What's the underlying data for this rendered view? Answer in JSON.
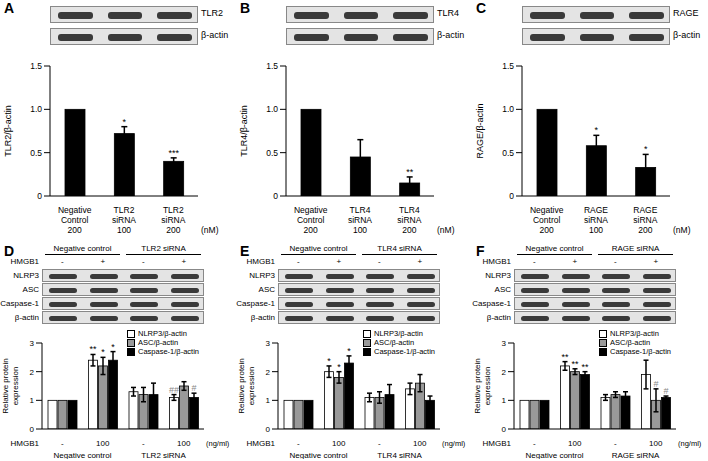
{
  "chart_data": [
    {
      "panel": "A",
      "type": "bar",
      "blots": [
        "TLR2",
        "β-actin"
      ],
      "categories": [
        "Negative Control",
        "TLR2 siRNA",
        "TLR2 siRNA"
      ],
      "doses": [
        200,
        100,
        200
      ],
      "x_unit": "(nM)",
      "y_label": "TLR2/β-actin",
      "values": [
        1,
        0.72,
        0.4
      ],
      "errors": [
        0,
        0.08,
        0.04
      ],
      "annotations": [
        null,
        "*",
        "***"
      ],
      "color": "#000000",
      "ylim": [
        0,
        1.5
      ],
      "yticks": [
        0,
        0.5,
        {
          "value": 1,
          "label": "1.0"
        },
        1.5
      ]
    },
    {
      "panel": "B",
      "type": "bar",
      "blots": [
        "TLR4",
        "β-actin"
      ],
      "categories": [
        "Negative Control",
        "TLR4 siRNA",
        "TLR4 siRNA"
      ],
      "doses": [
        200,
        100,
        200
      ],
      "x_unit": "(nM)",
      "y_label": "TLR4/β-actin",
      "values": [
        1,
        0.45,
        0.15
      ],
      "errors": [
        0,
        0.2,
        0.07
      ],
      "annotations": [
        null,
        null,
        "**"
      ],
      "color": "#000000",
      "ylim": [
        0,
        1.5
      ],
      "yticks": [
        0,
        0.5,
        {
          "value": 1,
          "label": "1.0"
        },
        1.5
      ]
    },
    {
      "panel": "C",
      "type": "bar",
      "blots": [
        "RAGE",
        "β-actin"
      ],
      "categories": [
        "Negative Control",
        "RAGE siRNA",
        "RAGE siRNA"
      ],
      "doses": [
        200,
        100,
        200
      ],
      "x_unit": "(nM)",
      "y_label": "RAGE/β-actin",
      "values": [
        1,
        0.58,
        0.33
      ],
      "errors": [
        0,
        0.12,
        0.15
      ],
      "annotations": [
        null,
        "*",
        "*"
      ],
      "color": "#000000",
      "ylim": [
        0,
        1.5
      ],
      "yticks": [
        0,
        0.5,
        {
          "value": 1,
          "label": "1.0"
        },
        1.5
      ]
    },
    {
      "panel": "D",
      "type": "bar",
      "blot_groups": [
        "Negative control",
        "TLR2 siRNA"
      ],
      "treatment": "HMGB1",
      "conditions": [
        "-",
        "+",
        "-",
        "+"
      ],
      "blots": [
        "NLRP3",
        "ASC",
        "Caspase-1",
        "β-actin"
      ],
      "categories": [
        "-",
        "100",
        "-",
        "100"
      ],
      "groups": [
        "Negative control",
        "TLR2 siRNA"
      ],
      "x_label": "HMGB1",
      "x_unit": "(ng/ml)",
      "y_label": "Relative protein expression",
      "legend": "top right",
      "ylim": [
        0,
        3
      ],
      "yticks": [
        0,
        1,
        2,
        3
      ],
      "series": [
        {
          "name": "NLRP3/β-actin",
          "color": "#ffffff",
          "values": [
            1,
            2.4,
            1.3,
            1.1
          ],
          "errors": [
            0,
            0.2,
            0.15,
            0.1
          ],
          "annotations": [
            null,
            "**",
            null,
            "##"
          ]
        },
        {
          "name": "ASC/β-actin",
          "color": "#999999",
          "values": [
            1,
            2.2,
            1.2,
            1.5
          ],
          "errors": [
            0,
            0.3,
            0.25,
            0.15
          ],
          "annotations": [
            null,
            "*",
            null,
            null
          ]
        },
        {
          "name": "Caspase-1/β-actin",
          "color": "#000000",
          "values": [
            1,
            2.4,
            1.2,
            1.1
          ],
          "errors": [
            0,
            0.3,
            0.4,
            0.15
          ],
          "annotations": [
            null,
            "*",
            null,
            "#"
          ]
        }
      ]
    },
    {
      "panel": "E",
      "type": "bar",
      "blot_groups": [
        "Negative control",
        "TLR4 siRNA"
      ],
      "treatment": "HMGB1",
      "conditions": [
        "-",
        "+",
        "-",
        "+"
      ],
      "blots": [
        "NLRP3",
        "ASC",
        "Caspase-1",
        "β-actin"
      ],
      "categories": [
        "-",
        "100",
        "-",
        "100"
      ],
      "groups": [
        "Negative control",
        "TLR4 siRNA"
      ],
      "x_label": "HMGB1",
      "x_unit": "(ng/ml)",
      "y_label": "Relative protein expression",
      "legend": "top right",
      "ylim": [
        0,
        3
      ],
      "yticks": [
        0,
        1,
        2,
        3
      ],
      "series": [
        {
          "name": "NLRP3/β-actin",
          "color": "#ffffff",
          "values": [
            1,
            2.0,
            1.1,
            1.4
          ],
          "errors": [
            0,
            0.2,
            0.15,
            0.2
          ],
          "annotations": [
            null,
            "*",
            null,
            null
          ]
        },
        {
          "name": "ASC/β-actin",
          "color": "#999999",
          "values": [
            1,
            1.8,
            1.1,
            1.6
          ],
          "errors": [
            0,
            0.2,
            0.2,
            0.3
          ],
          "annotations": [
            null,
            "*",
            null,
            null
          ]
        },
        {
          "name": "Caspase-1/β-actin",
          "color": "#000000",
          "values": [
            1,
            2.3,
            1.2,
            1.0
          ],
          "errors": [
            0,
            0.25,
            0.35,
            0.15
          ],
          "annotations": [
            null,
            "*",
            null,
            null
          ]
        }
      ]
    },
    {
      "panel": "F",
      "type": "bar",
      "blot_groups": [
        "Negative control",
        "RAGE siRNA"
      ],
      "treatment": "HMGB1",
      "conditions": [
        "-",
        "+",
        "-",
        "+"
      ],
      "blots": [
        "NLRP3",
        "ASC",
        "Caspase-1",
        "β-actin"
      ],
      "categories": [
        "-",
        "100",
        "-",
        "100"
      ],
      "groups": [
        "Negative control",
        "RAGE siRNA"
      ],
      "x_label": "HMGB1",
      "x_unit": "(ng/ml)",
      "y_label": "Relative protein expression",
      "legend": "top right",
      "ylim": [
        0,
        3
      ],
      "yticks": [
        0,
        1,
        2,
        3
      ],
      "series": [
        {
          "name": "NLRP3/β-actin",
          "color": "#ffffff",
          "values": [
            1,
            2.2,
            1.1,
            1.9
          ],
          "errors": [
            0,
            0.15,
            0.1,
            0.5
          ],
          "annotations": [
            null,
            "**",
            null,
            null
          ]
        },
        {
          "name": "ASC/β-actin",
          "color": "#999999",
          "values": [
            1,
            2.0,
            1.2,
            1.0
          ],
          "errors": [
            0,
            0.1,
            0.1,
            0.4
          ],
          "annotations": [
            null,
            "**",
            null,
            "#"
          ]
        },
        {
          "name": "Caspase-1/β-actin",
          "color": "#000000",
          "values": [
            1,
            1.9,
            1.15,
            1.1
          ],
          "errors": [
            0,
            0.1,
            0.15,
            0.05
          ],
          "annotations": [
            null,
            "**",
            null,
            "#"
          ]
        }
      ]
    }
  ]
}
